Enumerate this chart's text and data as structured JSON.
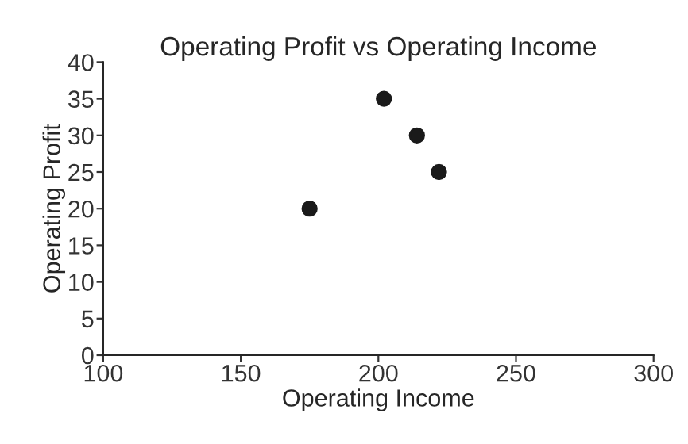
{
  "chart_data": {
    "type": "scatter",
    "title": "Operating Profit vs Operating Income",
    "xlabel": "Operating Income",
    "ylabel": "Operating Profit",
    "x": [
      175,
      202,
      214,
      222
    ],
    "series": [
      {
        "color": "#1a1a1a",
        "values": [
          20,
          35,
          30,
          25
        ]
      }
    ],
    "xlim": [
      100,
      300
    ],
    "xticks": [
      100,
      150,
      200,
      250,
      300
    ],
    "ylim": [
      0,
      40
    ],
    "yticks": [
      0,
      5,
      10,
      15,
      20,
      25,
      30,
      35,
      40
    ],
    "marker": "circle",
    "grid": false,
    "legend": false
  }
}
